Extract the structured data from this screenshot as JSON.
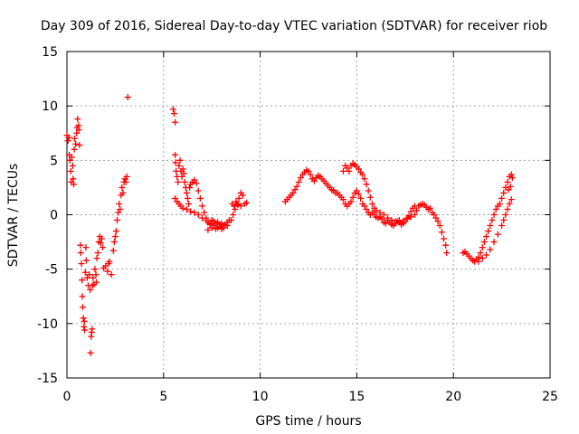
{
  "chart_data": {
    "type": "scatter",
    "title": "Day 309 of 2016, Sidereal Day-to-day VTEC variation (SDTVAR) for receiver riob",
    "xlabel": "GPS time / hours",
    "ylabel": "SDTVAR / TECUs",
    "xlim": [
      0,
      25
    ],
    "ylim": [
      -15,
      15
    ],
    "x_ticks": [
      0,
      5,
      10,
      15,
      20,
      25
    ],
    "y_ticks": [
      -15,
      -10,
      -5,
      0,
      5,
      10,
      15
    ],
    "x_tick_labels": [
      "0",
      "5",
      "10",
      "15",
      "20",
      "25"
    ],
    "y_tick_labels": [
      "-15",
      "-10",
      "-5",
      "0",
      "5",
      "10",
      "15"
    ],
    "grid": true,
    "marker": "plus",
    "color": "#ff0000",
    "series": [
      {
        "name": "SDTVAR",
        "points": [
          [
            0.0,
            7.3
          ],
          [
            0.05,
            6.8
          ],
          [
            0.1,
            7.1
          ],
          [
            0.12,
            5.5
          ],
          [
            0.15,
            5.0
          ],
          [
            0.2,
            4.0
          ],
          [
            0.22,
            3.0
          ],
          [
            0.25,
            5.3
          ],
          [
            0.3,
            4.5
          ],
          [
            0.32,
            3.3
          ],
          [
            0.35,
            2.8
          ],
          [
            0.38,
            6.0
          ],
          [
            0.4,
            7.0
          ],
          [
            0.45,
            6.5
          ],
          [
            0.5,
            7.5
          ],
          [
            0.52,
            8.0
          ],
          [
            0.55,
            8.8
          ],
          [
            0.6,
            8.2
          ],
          [
            0.62,
            7.8
          ],
          [
            0.65,
            6.4
          ],
          [
            0.7,
            -2.8
          ],
          [
            0.72,
            -3.5
          ],
          [
            0.75,
            -4.5
          ],
          [
            0.78,
            -6.0
          ],
          [
            0.8,
            -7.5
          ],
          [
            0.82,
            -8.5
          ],
          [
            0.85,
            -9.5
          ],
          [
            0.88,
            -10.3
          ],
          [
            0.9,
            -9.8
          ],
          [
            0.92,
            -10.6
          ],
          [
            0.95,
            -5.3
          ],
          [
            0.98,
            -3.0
          ],
          [
            1.0,
            -4.2
          ],
          [
            1.05,
            -5.8
          ],
          [
            1.1,
            -6.5
          ],
          [
            1.15,
            -5.5
          ],
          [
            1.2,
            -6.9
          ],
          [
            1.22,
            -12.7
          ],
          [
            1.25,
            -11.2
          ],
          [
            1.28,
            -10.8
          ],
          [
            1.3,
            -10.5
          ],
          [
            1.32,
            -6.5
          ],
          [
            1.35,
            -5.8
          ],
          [
            1.4,
            -6.4
          ],
          [
            1.45,
            -5.0
          ],
          [
            1.5,
            -5.5
          ],
          [
            1.52,
            -6.2
          ],
          [
            1.55,
            -4.0
          ],
          [
            1.6,
            -3.5
          ],
          [
            1.65,
            -2.5
          ],
          [
            1.7,
            -2.0
          ],
          [
            1.75,
            -2.6
          ],
          [
            1.8,
            -2.2
          ],
          [
            1.85,
            -3.0
          ],
          [
            1.9,
            -4.9
          ],
          [
            2.0,
            -4.7
          ],
          [
            2.1,
            -5.2
          ],
          [
            2.15,
            -4.5
          ],
          [
            2.2,
            -4.3
          ],
          [
            2.3,
            -5.5
          ],
          [
            2.4,
            -3.3
          ],
          [
            2.45,
            -2.5
          ],
          [
            2.5,
            -2.0
          ],
          [
            2.55,
            -1.5
          ],
          [
            2.6,
            -0.5
          ],
          [
            2.65,
            0.2
          ],
          [
            2.7,
            1.0
          ],
          [
            2.75,
            0.5
          ],
          [
            2.8,
            1.8
          ],
          [
            2.85,
            2.5
          ],
          [
            2.9,
            2.0
          ],
          [
            2.95,
            3.0
          ],
          [
            3.0,
            3.3
          ],
          [
            3.05,
            3.0
          ],
          [
            3.1,
            3.5
          ],
          [
            3.15,
            10.8
          ],
          [
            5.5,
            9.7
          ],
          [
            5.55,
            9.3
          ],
          [
            5.6,
            8.5
          ],
          [
            5.6,
            5.5
          ],
          [
            5.62,
            4.8
          ],
          [
            5.65,
            4.0
          ],
          [
            5.7,
            3.5
          ],
          [
            5.75,
            3.0
          ],
          [
            5.8,
            4.5
          ],
          [
            5.85,
            5.0
          ],
          [
            5.9,
            4.0
          ],
          [
            5.95,
            3.5
          ],
          [
            6.0,
            4.2
          ],
          [
            6.05,
            3.8
          ],
          [
            6.1,
            3.0
          ],
          [
            6.15,
            2.5
          ],
          [
            6.2,
            2.0
          ],
          [
            6.25,
            1.5
          ],
          [
            6.3,
            1.0
          ],
          [
            6.35,
            2.5
          ],
          [
            5.6,
            1.5
          ],
          [
            5.7,
            1.2
          ],
          [
            5.8,
            1.0
          ],
          [
            5.9,
            0.8
          ],
          [
            6.0,
            0.6
          ],
          [
            6.2,
            0.5
          ],
          [
            6.4,
            0.3
          ],
          [
            6.6,
            0.2
          ],
          [
            6.8,
            0.0
          ],
          [
            7.0,
            -0.3
          ],
          [
            7.2,
            -0.5
          ],
          [
            7.4,
            -0.8
          ],
          [
            7.6,
            -1.0
          ],
          [
            7.8,
            -1.2
          ],
          [
            8.0,
            -1.3
          ],
          [
            6.4,
            2.8
          ],
          [
            6.5,
            3.0
          ],
          [
            6.6,
            3.2
          ],
          [
            6.7,
            2.9
          ],
          [
            6.8,
            2.2
          ],
          [
            6.9,
            1.5
          ],
          [
            7.0,
            0.8
          ],
          [
            7.1,
            0.2
          ],
          [
            7.2,
            -0.3
          ],
          [
            7.3,
            -0.7
          ],
          [
            7.4,
            -0.9
          ],
          [
            7.5,
            -0.5
          ],
          [
            7.6,
            -0.6
          ],
          [
            7.7,
            -0.8
          ],
          [
            7.8,
            -0.7
          ],
          [
            7.9,
            -0.9
          ],
          [
            8.0,
            -0.8
          ],
          [
            8.1,
            -1.0
          ],
          [
            8.2,
            -0.9
          ],
          [
            8.3,
            -0.7
          ],
          [
            8.4,
            -0.5
          ],
          [
            7.3,
            -1.4
          ],
          [
            7.5,
            -1.2
          ],
          [
            7.7,
            -1.3
          ],
          [
            7.9,
            -1.1
          ],
          [
            8.1,
            -1.2
          ],
          [
            8.3,
            -1.0
          ],
          [
            8.5,
            -0.5
          ],
          [
            8.6,
            0.0
          ],
          [
            8.7,
            0.5
          ],
          [
            8.8,
            1.0
          ],
          [
            8.9,
            1.5
          ],
          [
            9.0,
            2.0
          ],
          [
            9.1,
            1.8
          ],
          [
            8.55,
            1.0
          ],
          [
            8.65,
            0.8
          ],
          [
            8.75,
            1.2
          ],
          [
            8.85,
            0.9
          ],
          [
            9.0,
            0.8
          ],
          [
            9.2,
            1.0
          ],
          [
            9.3,
            1.1
          ],
          [
            11.3,
            1.2
          ],
          [
            11.4,
            1.4
          ],
          [
            11.5,
            1.6
          ],
          [
            11.6,
            1.8
          ],
          [
            11.7,
            2.0
          ],
          [
            11.8,
            2.3
          ],
          [
            11.9,
            2.6
          ],
          [
            12.0,
            3.0
          ],
          [
            12.1,
            3.4
          ],
          [
            12.2,
            3.7
          ],
          [
            12.3,
            3.9
          ],
          [
            12.4,
            4.1
          ],
          [
            12.5,
            4.0
          ],
          [
            12.6,
            3.7
          ],
          [
            12.7,
            3.3
          ],
          [
            12.8,
            3.1
          ],
          [
            12.9,
            3.4
          ],
          [
            13.0,
            3.6
          ],
          [
            13.1,
            3.5
          ],
          [
            13.2,
            3.3
          ],
          [
            13.3,
            3.1
          ],
          [
            13.4,
            2.9
          ],
          [
            13.5,
            2.7
          ],
          [
            13.6,
            2.5
          ],
          [
            13.7,
            2.3
          ],
          [
            13.8,
            2.2
          ],
          [
            13.9,
            2.0
          ],
          [
            14.0,
            2.0
          ],
          [
            14.1,
            1.8
          ],
          [
            14.2,
            1.6
          ],
          [
            14.3,
            1.4
          ],
          [
            14.4,
            1.0
          ],
          [
            14.5,
            0.8
          ],
          [
            14.6,
            1.0
          ],
          [
            14.7,
            1.2
          ],
          [
            14.8,
            1.6
          ],
          [
            14.9,
            2.0
          ],
          [
            15.0,
            2.2
          ],
          [
            15.1,
            1.9
          ],
          [
            15.2,
            1.5
          ],
          [
            15.3,
            1.0
          ],
          [
            15.4,
            0.8
          ],
          [
            15.5,
            0.5
          ],
          [
            15.6,
            0.2
          ],
          [
            15.7,
            0.0
          ],
          [
            15.8,
            0.2
          ],
          [
            15.9,
            0.0
          ],
          [
            16.0,
            -0.2
          ],
          [
            16.1,
            -0.3
          ],
          [
            16.2,
            -0.2
          ],
          [
            16.3,
            -0.4
          ],
          [
            16.4,
            -0.7
          ],
          [
            16.5,
            -0.8
          ],
          [
            16.6,
            -0.5
          ],
          [
            16.7,
            -0.7
          ],
          [
            16.8,
            -0.9
          ],
          [
            16.9,
            -1.0
          ],
          [
            17.0,
            -0.8
          ],
          [
            17.1,
            -0.6
          ],
          [
            17.2,
            -0.7
          ],
          [
            17.3,
            -0.9
          ],
          [
            17.4,
            -0.8
          ],
          [
            17.5,
            -0.6
          ],
          [
            17.6,
            -0.3
          ],
          [
            17.7,
            -0.1
          ],
          [
            17.8,
            0.3
          ],
          [
            17.9,
            0.6
          ],
          [
            18.0,
            0.8
          ],
          [
            14.3,
            4.0
          ],
          [
            14.4,
            4.5
          ],
          [
            14.5,
            4.3
          ],
          [
            14.6,
            4.0
          ],
          [
            14.7,
            4.5
          ],
          [
            14.8,
            4.7
          ],
          [
            14.9,
            4.6
          ],
          [
            15.0,
            4.4
          ],
          [
            15.1,
            4.2
          ],
          [
            15.2,
            3.9
          ],
          [
            15.3,
            3.7
          ],
          [
            15.4,
            3.3
          ],
          [
            15.5,
            2.8
          ],
          [
            15.6,
            2.2
          ],
          [
            15.7,
            1.6
          ],
          [
            15.8,
            1.0
          ],
          [
            15.9,
            0.6
          ],
          [
            16.0,
            0.4
          ],
          [
            16.2,
            0.2
          ],
          [
            16.4,
            0.0
          ],
          [
            16.6,
            -0.3
          ],
          [
            16.8,
            -0.5
          ],
          [
            17.0,
            -0.6
          ],
          [
            17.2,
            -0.5
          ],
          [
            17.4,
            -0.6
          ],
          [
            17.6,
            -0.4
          ],
          [
            17.8,
            -0.2
          ],
          [
            18.0,
            0.0
          ],
          [
            18.1,
            0.4
          ],
          [
            18.2,
            0.8
          ],
          [
            18.3,
            0.9
          ],
          [
            18.4,
            1.0
          ],
          [
            18.5,
            0.9
          ],
          [
            18.6,
            0.7
          ],
          [
            18.7,
            0.5
          ],
          [
            18.8,
            0.6
          ],
          [
            18.9,
            0.2
          ],
          [
            19.0,
            0.0
          ],
          [
            19.1,
            -0.3
          ],
          [
            19.2,
            -0.6
          ],
          [
            19.3,
            -1.0
          ],
          [
            19.4,
            -1.6
          ],
          [
            19.5,
            -2.2
          ],
          [
            19.6,
            -2.8
          ],
          [
            19.65,
            -3.5
          ],
          [
            20.5,
            -3.5
          ],
          [
            20.6,
            -3.4
          ],
          [
            20.7,
            -3.6
          ],
          [
            20.8,
            -3.8
          ],
          [
            20.9,
            -4.0
          ],
          [
            21.0,
            -4.2
          ],
          [
            21.1,
            -4.3
          ],
          [
            21.2,
            -4.1
          ],
          [
            21.3,
            -3.9
          ],
          [
            21.4,
            -3.5
          ],
          [
            21.5,
            -3.0
          ],
          [
            21.6,
            -2.5
          ],
          [
            21.7,
            -2.0
          ],
          [
            21.8,
            -1.5
          ],
          [
            21.9,
            -1.0
          ],
          [
            22.0,
            -0.5
          ],
          [
            22.1,
            0.0
          ],
          [
            22.2,
            0.5
          ],
          [
            22.3,
            0.8
          ],
          [
            22.4,
            1.0
          ],
          [
            22.5,
            1.5
          ],
          [
            22.6,
            2.0
          ],
          [
            22.7,
            2.5
          ],
          [
            22.8,
            3.0
          ],
          [
            22.9,
            3.5
          ],
          [
            21.3,
            -4.3
          ],
          [
            21.5,
            -4.0
          ],
          [
            21.7,
            -3.7
          ],
          [
            21.9,
            -3.2
          ],
          [
            22.1,
            -2.5
          ],
          [
            22.3,
            -1.8
          ],
          [
            22.5,
            -1.0
          ],
          [
            22.6,
            -0.5
          ],
          [
            22.7,
            0.0
          ],
          [
            22.8,
            0.5
          ],
          [
            22.9,
            1.0
          ],
          [
            23.0,
            1.4
          ],
          [
            22.85,
            2.3
          ],
          [
            22.95,
            2.6
          ],
          [
            23.0,
            3.7
          ],
          [
            23.05,
            3.4
          ]
        ]
      }
    ]
  }
}
